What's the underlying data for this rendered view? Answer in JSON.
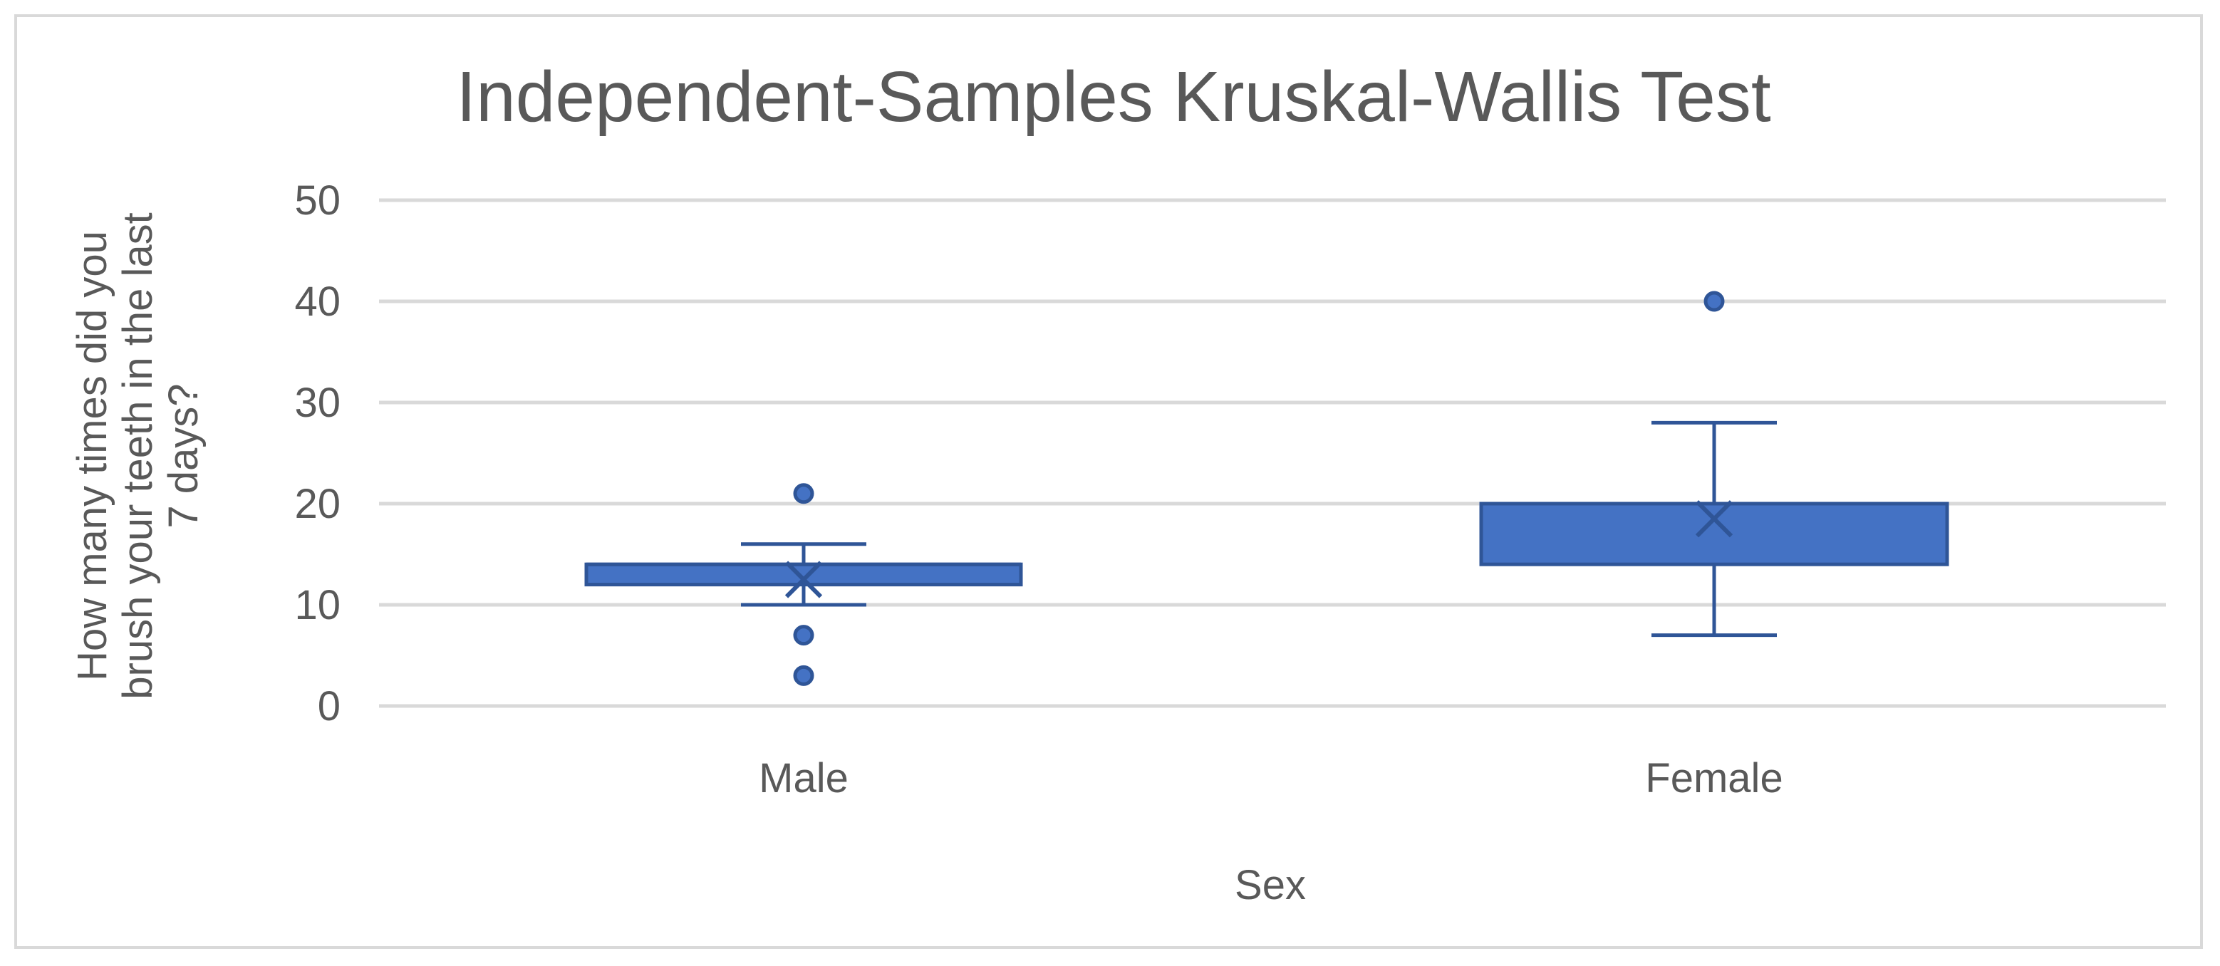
{
  "chart_data": {
    "type": "box",
    "title": "Independent-Samples Kruskal-Wallis Test",
    "xlabel": "Sex",
    "ylabel_lines": [
      "How many times did you",
      "brush your teeth in the last",
      "7 days?"
    ],
    "ylim": [
      0,
      50
    ],
    "yticks": [
      0,
      10,
      20,
      30,
      40,
      50
    ],
    "grid": true,
    "categories": [
      "Male",
      "Female"
    ],
    "boxes": [
      {
        "category": "Male",
        "whisker_low": 10,
        "q1": 12,
        "median": 14,
        "q3": 14,
        "whisker_high": 16,
        "mean": 12.5,
        "outliers": [
          21,
          7,
          3
        ]
      },
      {
        "category": "Female",
        "whisker_low": 7,
        "q1": 14,
        "median": 20,
        "q3": 20,
        "whisker_high": 28,
        "mean": 18.5,
        "outliers": [
          40
        ]
      }
    ],
    "colors": {
      "box_fill": "#4472c4",
      "box_stroke": "#2f5597",
      "grid": "#d9d9d9",
      "text": "#595959"
    }
  }
}
